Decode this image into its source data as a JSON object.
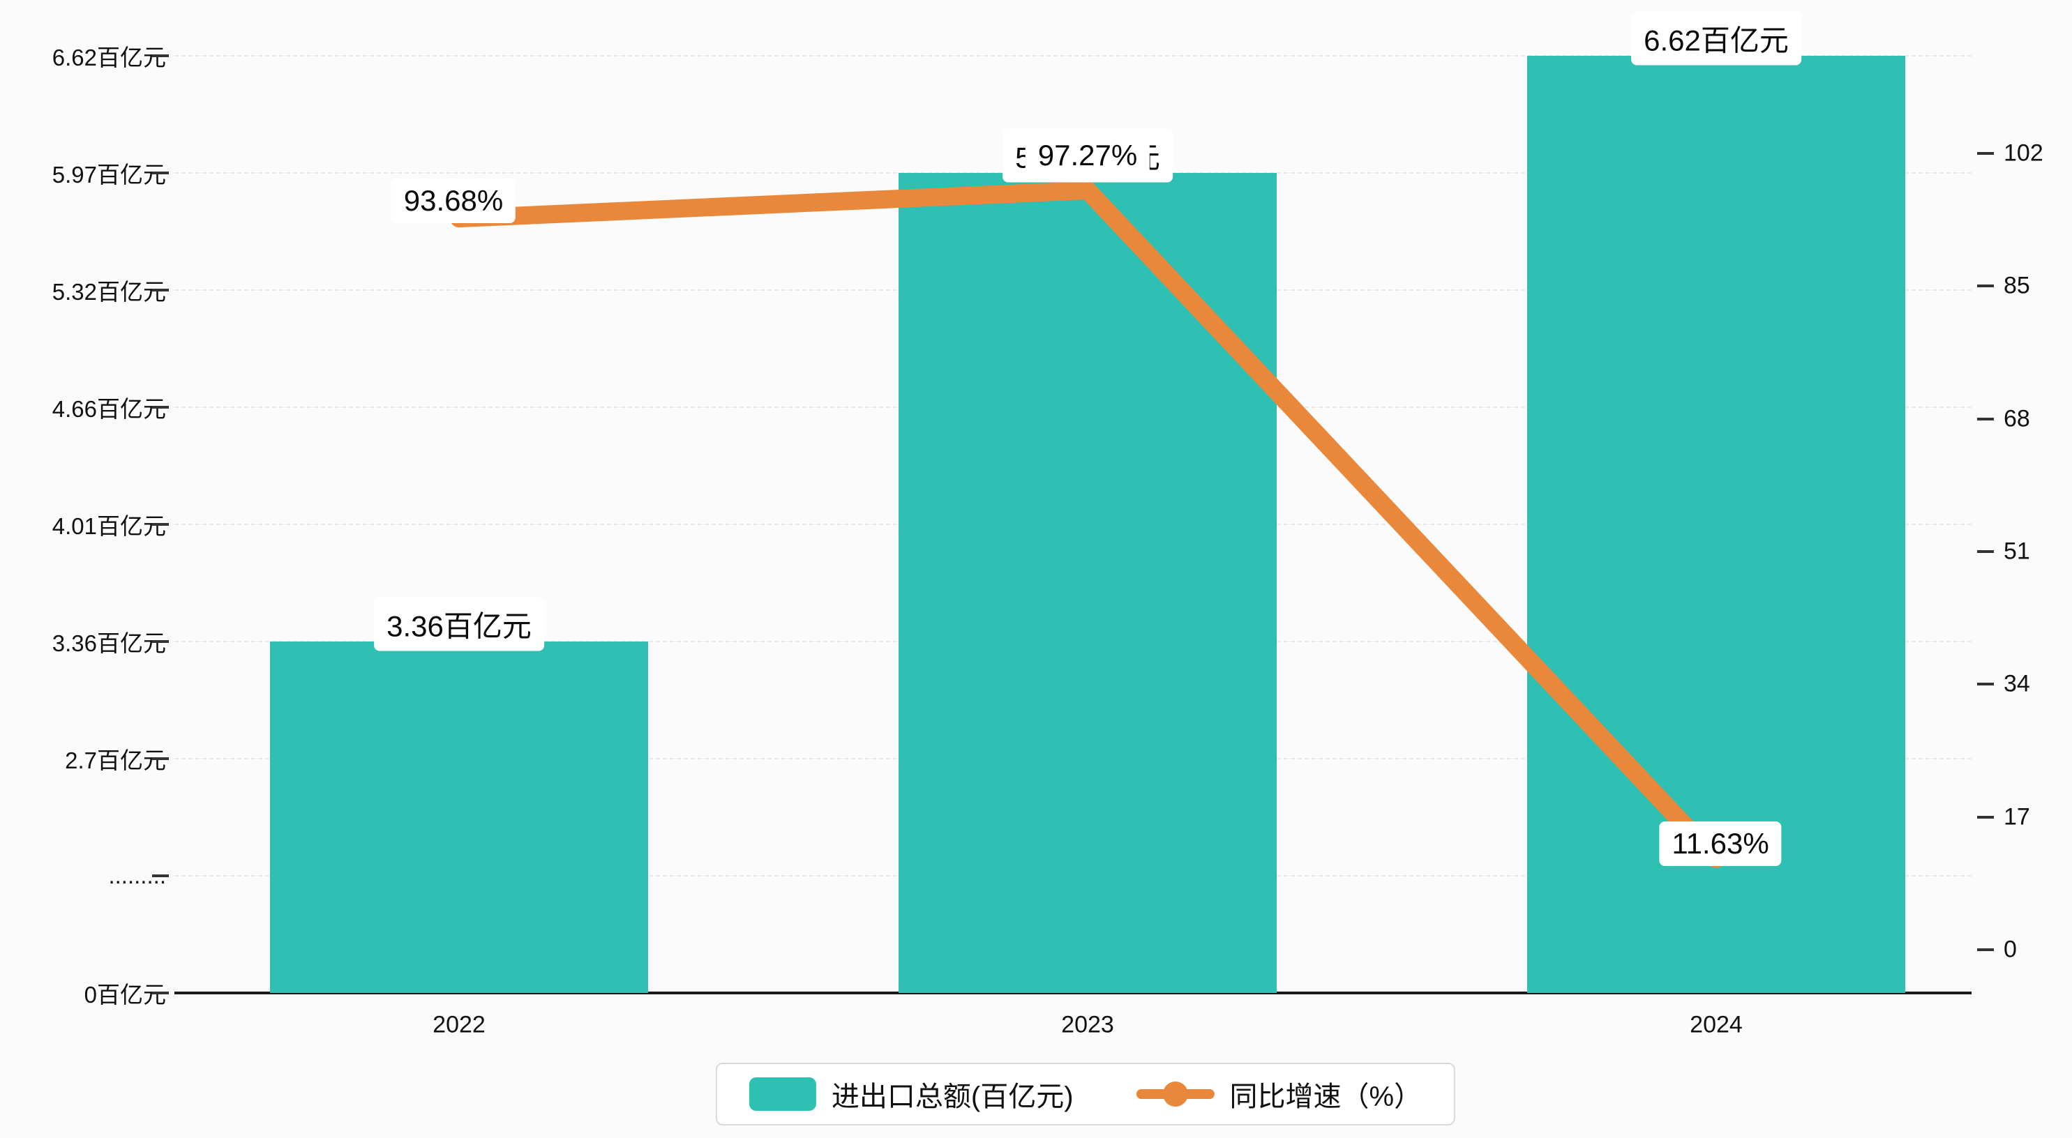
{
  "colors": {
    "background": "#fbfbfb",
    "bar": "#2ec0b2",
    "line": "#e9873b",
    "axis": "#1a1a1a",
    "grid": "#e8e8e8",
    "label_bg": "#ffffff",
    "legend_border": "#d9d9d9"
  },
  "legend": {
    "items": [
      {
        "label": "进出口总额(百亿元)",
        "type": "bar"
      },
      {
        "label": "同比增速（%）",
        "type": "line"
      }
    ]
  },
  "y_axis_left": {
    "tick_labels": [
      "0百亿元",
      ".........",
      "2.7百亿元",
      "3.36百亿元",
      "4.01百亿元",
      "4.66百亿元",
      "5.32百亿元",
      "5.97百亿元",
      "6.62百亿元"
    ]
  },
  "y_axis_right": {
    "tick_labels": [
      "0",
      "17",
      "34",
      "51",
      "68",
      "85",
      "102"
    ],
    "min": 0,
    "max": 102
  },
  "chart_data": {
    "type": "bar",
    "categories": [
      "2022",
      "2023",
      "2024"
    ],
    "series": [
      {
        "name": "进出口总额(百亿元)",
        "type": "bar",
        "axis": "left",
        "values": [
          3.36,
          5.97,
          6.62
        ],
        "labels": [
          "3.36百亿元",
          "5.97百亿元",
          "6.62百亿元"
        ]
      },
      {
        "name": "同比增速（%）",
        "type": "line",
        "axis": "right",
        "values": [
          93.68,
          97.27,
          11.63
        ],
        "labels": [
          "93.68%",
          "97.27%",
          "11.63%"
        ]
      }
    ],
    "left_axis_range": [
      0,
      6.62
    ],
    "right_axis_range": [
      0,
      102
    ],
    "grid": true,
    "legend_position": "bottom"
  }
}
